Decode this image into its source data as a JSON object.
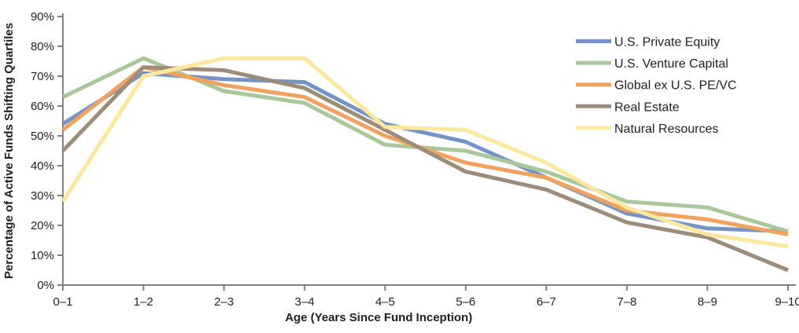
{
  "chart_data": {
    "type": "line",
    "title": "",
    "xlabel": "Age (Years Since Fund Inception)",
    "ylabel": "Percentage of Active Funds Shifting Quartiles",
    "categories": [
      "0–1",
      "1–2",
      "2–3",
      "3–4",
      "4–5",
      "5–6",
      "6–7",
      "7–8",
      "8–9",
      "9–10"
    ],
    "series": [
      {
        "name": "U.S. Private Equity",
        "color": "#7494C8",
        "values": [
          54,
          71,
          69,
          68,
          54,
          48,
          36,
          24,
          19,
          18
        ]
      },
      {
        "name": "U.S. Venture Capital",
        "color": "#A9C79B",
        "values": [
          63,
          76,
          65,
          61,
          47,
          45,
          38,
          28,
          26,
          18
        ]
      },
      {
        "name": "Global ex U.S. PE/VC",
        "color": "#F2A25F",
        "values": [
          52,
          73,
          67,
          63,
          50,
          41,
          36,
          25,
          22,
          17
        ]
      },
      {
        "name": "Real Estate",
        "color": "#9C8C7A",
        "values": [
          45,
          73,
          72,
          66,
          52,
          38,
          32,
          21,
          16,
          5
        ]
      },
      {
        "name": "Natural Resources",
        "color": "#FCE79F",
        "values": [
          28,
          70,
          76,
          76,
          53,
          52,
          41,
          26,
          17,
          13
        ]
      }
    ],
    "ylim": [
      0,
      90
    ],
    "ytick_step": 10,
    "y_tick_labels": [
      "0%",
      "10%",
      "20%",
      "30%",
      "40%",
      "50%",
      "60%",
      "70%",
      "80%",
      "90%"
    ],
    "grid": false,
    "legend_position": "right-top",
    "line_width": 5,
    "axis_color": "#808080",
    "text_color": "#1f1f1f"
  }
}
